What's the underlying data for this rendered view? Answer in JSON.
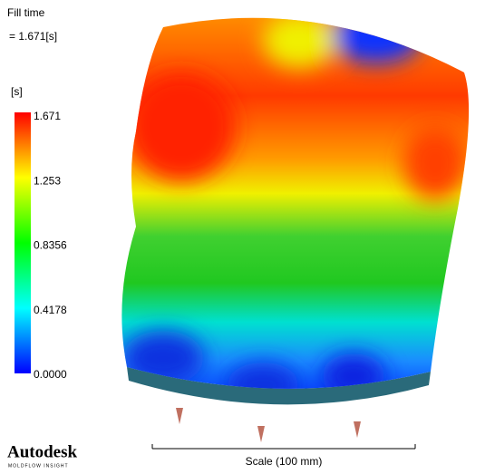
{
  "header": {
    "title": "Fill time",
    "value": "= 1.671[s]",
    "unit": "[s]"
  },
  "legend": {
    "labels": [
      "1.671",
      "1.253",
      "0.8356",
      "0.4178",
      "0.0000"
    ]
  },
  "footer": {
    "logo": "Autodesk",
    "logo_sub": "MOLDFLOW INSIGHT",
    "scale": "Scale (100 mm)"
  }
}
